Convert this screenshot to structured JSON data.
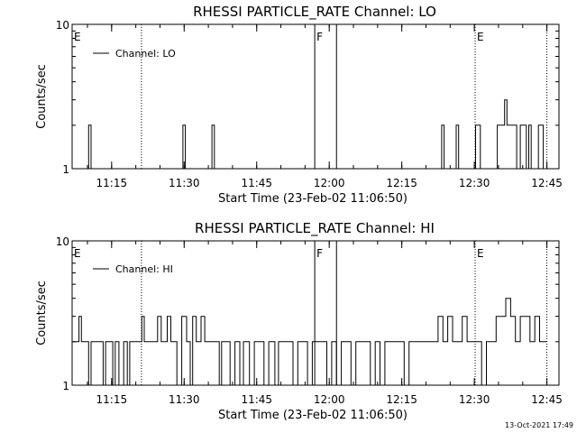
{
  "footer_timestamp": "13-Oct-2021 17:49",
  "chart_data": [
    {
      "type": "line",
      "title": "RHESSI PARTICLE_RATE Channel: LO",
      "xlabel": "Start Time (23-Feb-02 11:06:50)",
      "ylabel": "Counts/sec",
      "y_scale": "log",
      "ylim": [
        1,
        10
      ],
      "y_ticks": [
        1,
        10
      ],
      "xlim": [
        "11:06:50",
        "12:47:30"
      ],
      "x_ticks": [
        "11:15",
        "11:30",
        "11:45",
        "12:00",
        "12:15",
        "12:30",
        "12:45"
      ],
      "grid": false,
      "legend": {
        "position": "top-left",
        "entries": [
          "Channel: LO"
        ]
      },
      "markers": [
        {
          "label": "E",
          "time": "11:06:50",
          "style": "dotted"
        },
        {
          "label": "",
          "time": "11:21:10",
          "style": "dotted"
        },
        {
          "label": "F",
          "time": "11:57:00",
          "style": "solid"
        },
        {
          "label": "",
          "time": "12:01:30",
          "style": "solid"
        },
        {
          "label": "E",
          "time": "12:30:10",
          "style": "dotted"
        },
        {
          "label": "",
          "time": "12:45:00",
          "style": "dotted"
        }
      ],
      "series": [
        {
          "name": "Channel: LO",
          "color": "#000000",
          "x": [
            "11:10:00",
            "11:10:30",
            "11:11:00",
            "11:23:30",
            "11:25:00",
            "11:29:30",
            "11:30:00",
            "11:30:30",
            "11:35:30",
            "11:36:00",
            "11:36:30",
            "11:57:00",
            "12:02:30",
            "12:23:00",
            "12:23:30",
            "12:24:00",
            "12:26:00",
            "12:26:30",
            "12:27:00",
            "12:30:00",
            "12:30:30",
            "12:31:00",
            "12:31:30",
            "12:32:00",
            "12:34:30",
            "12:35:00",
            "12:35:30",
            "12:36:00",
            "12:36:30",
            "12:37:00",
            "12:38:00",
            "12:38:30",
            "12:39:00",
            "12:40:00",
            "12:40:30",
            "12:41:00",
            "12:41:30",
            "12:42:00",
            "12:43:00",
            "12:43:30",
            "12:44:00",
            "12:44:30",
            "12:45:00"
          ],
          "values": [
            1,
            2,
            1,
            1,
            1,
            1,
            2,
            1,
            1,
            2,
            1,
            1,
            1,
            1,
            2,
            1,
            1,
            2,
            1,
            1,
            2,
            2,
            1,
            1,
            1,
            2,
            2,
            2,
            3,
            2,
            2,
            2,
            1,
            2,
            2,
            1,
            2,
            1,
            1,
            2,
            2,
            1,
            1
          ]
        }
      ]
    },
    {
      "type": "line",
      "title": "RHESSI PARTICLE_RATE Channel: HI",
      "xlabel": "Start Time (23-Feb-02 11:06:50)",
      "ylabel": "Counts/sec",
      "y_scale": "log",
      "ylim": [
        1,
        10
      ],
      "y_ticks": [
        1,
        10
      ],
      "xlim": [
        "11:06:50",
        "12:47:30"
      ],
      "x_ticks": [
        "11:15",
        "11:30",
        "11:45",
        "12:00",
        "12:15",
        "12:30",
        "12:45"
      ],
      "grid": false,
      "legend": {
        "position": "top-left",
        "entries": [
          "Channel: HI"
        ]
      },
      "markers": [
        {
          "label": "E",
          "time": "11:06:50",
          "style": "dotted"
        },
        {
          "label": "",
          "time": "11:21:10",
          "style": "dotted"
        },
        {
          "label": "F",
          "time": "11:57:00",
          "style": "solid"
        },
        {
          "label": "",
          "time": "12:01:30",
          "style": "solid"
        },
        {
          "label": "E",
          "time": "12:30:10",
          "style": "dotted"
        },
        {
          "label": "",
          "time": "12:45:00",
          "style": "dotted"
        }
      ],
      "series": [
        {
          "name": "Channel: HI",
          "color": "#000000",
          "x": [
            "11:07:00",
            "11:08:00",
            "11:08:30",
            "11:09:00",
            "11:10:00",
            "11:10:30",
            "11:11:00",
            "11:12:00",
            "11:13:00",
            "11:13:30",
            "11:14:00",
            "11:15:00",
            "11:15:30",
            "11:16:00",
            "11:17:00",
            "11:18:00",
            "11:18:30",
            "11:19:00",
            "11:20:00",
            "11:21:00",
            "11:21:30",
            "11:22:00",
            "11:23:00",
            "11:24:00",
            "11:25:00",
            "11:25:30",
            "11:26:00",
            "11:27:00",
            "11:27:30",
            "11:28:00",
            "11:29:00",
            "11:30:00",
            "11:31:00",
            "11:31:30",
            "11:32:00",
            "11:33:00",
            "11:34:00",
            "11:34:30",
            "11:35:00",
            "11:36:00",
            "11:37:00",
            "11:37:30",
            "11:38:00",
            "11:39:00",
            "11:40:00",
            "11:41:00",
            "11:42:00",
            "11:42:30",
            "11:43:00",
            "11:44:00",
            "11:45:00",
            "11:46:00",
            "11:47:00",
            "11:48:00",
            "11:48:30",
            "11:49:00",
            "11:50:00",
            "11:51:00",
            "11:52:00",
            "11:53:00",
            "11:54:00",
            "11:55:00",
            "11:56:00",
            "11:57:00",
            "11:58:00",
            "11:59:00",
            "12:00:00",
            "12:01:00",
            "12:02:00",
            "12:03:00",
            "12:04:00",
            "12:05:00",
            "12:06:00",
            "12:07:00",
            "12:08:00",
            "12:09:00",
            "12:10:00",
            "12:11:00",
            "12:12:00",
            "12:13:00",
            "12:14:00",
            "12:15:00",
            "12:16:00",
            "12:17:00",
            "12:18:00",
            "12:19:00",
            "12:20:00",
            "12:21:00",
            "12:22:00",
            "12:23:00",
            "12:24:00",
            "12:25:00",
            "12:26:00",
            "12:27:00",
            "12:28:00",
            "12:29:00",
            "12:30:00",
            "12:31:00",
            "12:32:00",
            "12:33:00",
            "12:34:00",
            "12:35:00",
            "12:36:00",
            "12:37:00",
            "12:38:00",
            "12:39:00",
            "12:40:00",
            "12:41:00",
            "12:42:00",
            "12:43:00",
            "12:44:00",
            "12:45:00"
          ],
          "values": [
            2,
            2,
            3,
            2,
            2,
            1,
            2,
            2,
            2,
            1,
            2,
            2,
            1,
            2,
            1,
            2,
            1,
            2,
            2,
            2,
            3,
            2,
            2,
            2,
            3,
            2,
            2,
            3,
            2,
            2,
            1,
            3,
            2,
            1,
            3,
            2,
            3,
            2,
            2,
            2,
            2,
            1,
            2,
            2,
            1,
            2,
            1,
            2,
            2,
            1,
            2,
            2,
            1,
            2,
            2,
            1,
            2,
            2,
            2,
            1,
            2,
            2,
            1,
            2,
            2,
            2,
            1,
            2,
            1,
            2,
            2,
            1,
            2,
            2,
            2,
            1,
            2,
            1,
            2,
            2,
            2,
            2,
            1,
            2,
            2,
            2,
            2,
            2,
            2,
            3,
            2,
            3,
            2,
            2,
            3,
            2,
            2,
            2,
            1,
            2,
            2,
            3,
            3,
            4,
            3,
            2,
            3,
            3,
            2,
            3,
            2,
            2
          ]
        }
      ]
    }
  ]
}
